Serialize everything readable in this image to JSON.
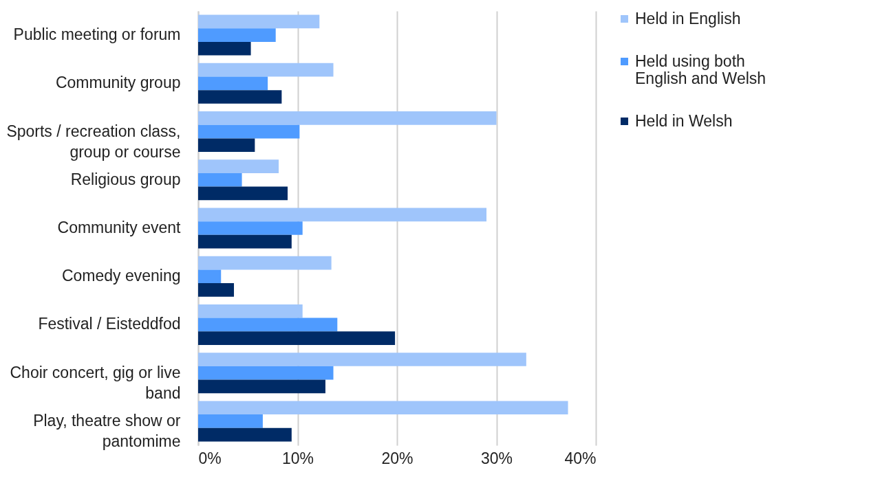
{
  "chart_data": {
    "type": "bar",
    "orientation": "horizontal",
    "categories": [
      "Public meeting or forum",
      "Community group",
      "Sports / recreation class,\ngroup or course",
      "Religious group",
      "Community event",
      "Comedy evening",
      "Festival / Eisteddfod",
      "Choir concert, gig or live\nband",
      "Play, theatre show or\npantomime"
    ],
    "series": [
      {
        "name": "Held in English",
        "color": "#9fc5fb",
        "values": [
          12.2,
          13.6,
          30.0,
          8.1,
          29.0,
          13.4,
          10.5,
          33.0,
          37.2
        ]
      },
      {
        "name": "Held using both\nEnglish and Welsh",
        "color": "#4f9bff",
        "values": [
          7.8,
          7.0,
          10.2,
          4.4,
          10.5,
          2.3,
          14.0,
          13.6,
          6.5
        ]
      },
      {
        "name": "Held in Welsh",
        "color": "#002b66",
        "values": [
          5.3,
          8.4,
          5.7,
          9.0,
          9.4,
          3.6,
          19.8,
          12.8,
          9.4
        ]
      }
    ],
    "xlim": [
      0,
      40
    ],
    "xticks": [
      {
        "value": 0,
        "label": "0%"
      },
      {
        "value": 10,
        "label": "10%"
      },
      {
        "value": 20,
        "label": "20%"
      },
      {
        "value": 30,
        "label": "30%"
      },
      {
        "value": 40,
        "label": "40%"
      }
    ],
    "grid": "x",
    "legend": "right"
  }
}
